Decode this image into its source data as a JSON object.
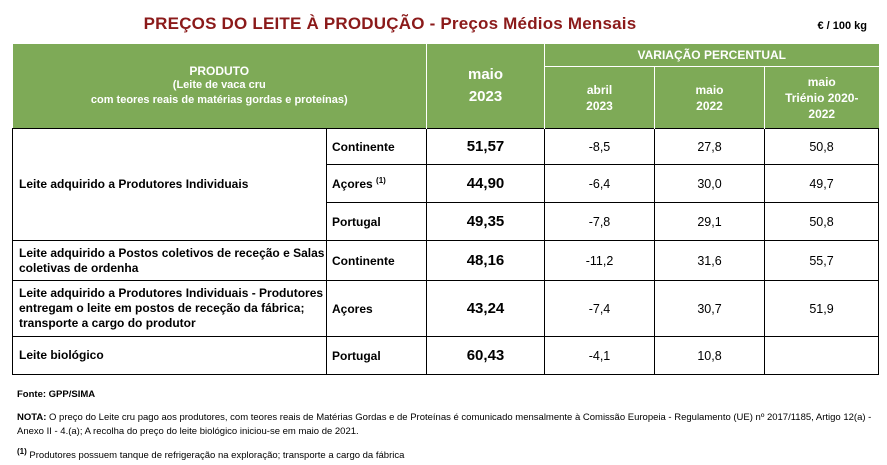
{
  "title": "PREÇOS DO LEITE À PRODUÇÃO - Preços Médios Mensais",
  "unit": "€ / 100 kg",
  "header": {
    "produto_title": "PRODUTO",
    "produto_sub1": "(Leite de vaca cru",
    "produto_sub2": "com teores reais de matérias gordas e proteínas)",
    "maio_line1": "maio",
    "maio_line2": "2023",
    "variacao": "VARIAÇÃO PERCENTUAL",
    "col_abril_1": "abril",
    "col_abril_2": "2023",
    "col_maio22_1": "maio",
    "col_maio22_2": "2022",
    "col_trienio_1": "maio",
    "col_trienio_2": "Triénio 2020-",
    "col_trienio_3": "2022"
  },
  "groups": [
    {
      "product": "Leite adquirido a Produtores Individuais"
    },
    {
      "product": "Leite adquirido a Postos coletivos de receção e Salas coletivas de ordenha"
    },
    {
      "product": "Leite adquirido a Produtores Individuais - Produtores entregam o leite em postos de receção da fábrica; transporte a cargo do produtor"
    },
    {
      "product": "Leite biológico"
    }
  ],
  "rows": [
    {
      "region": "Continente",
      "price": "51,57",
      "abril2023": "-8,5",
      "maio2022": "27,8",
      "trienio": "50,8"
    },
    {
      "region": "Açores",
      "region_sup": "(1)",
      "price": "44,90",
      "abril2023": "-6,4",
      "maio2022": "30,0",
      "trienio": "49,7"
    },
    {
      "region": "Portugal",
      "price": "49,35",
      "abril2023": "-7,8",
      "maio2022": "29,1",
      "trienio": "50,8"
    },
    {
      "region": "Continente",
      "price": "48,16",
      "abril2023": "-11,2",
      "maio2022": "31,6",
      "trienio": "55,7"
    },
    {
      "region": "Açores",
      "price": "43,24",
      "abril2023": "-7,4",
      "maio2022": "30,7",
      "trienio": "51,9"
    },
    {
      "region": "Portugal",
      "price": "60,43",
      "abril2023": "-4,1",
      "maio2022": "10,8",
      "trienio": ""
    }
  ],
  "notes": {
    "fonte_label": "Fonte:",
    "fonte_text": "GPP/SIMA",
    "nota_label": "NOTA:",
    "nota_text": "O preço do Leite cru pago aos produtores, com teores reais de Matérias Gordas e de Proteínas é comunicado mensalmente à Comissão Europeia - Regulamento (UE) nº 2017/1185, Artigo 12(a) - Anexo II - 4.(a); A recolha do preço do leite biológico iniciou-se em maio de 2021.",
    "footnote_mark": "(1)",
    "footnote_text": "Produtores possuem tanque de refrigeração na exploração; transporte a cargo da fábrica"
  }
}
